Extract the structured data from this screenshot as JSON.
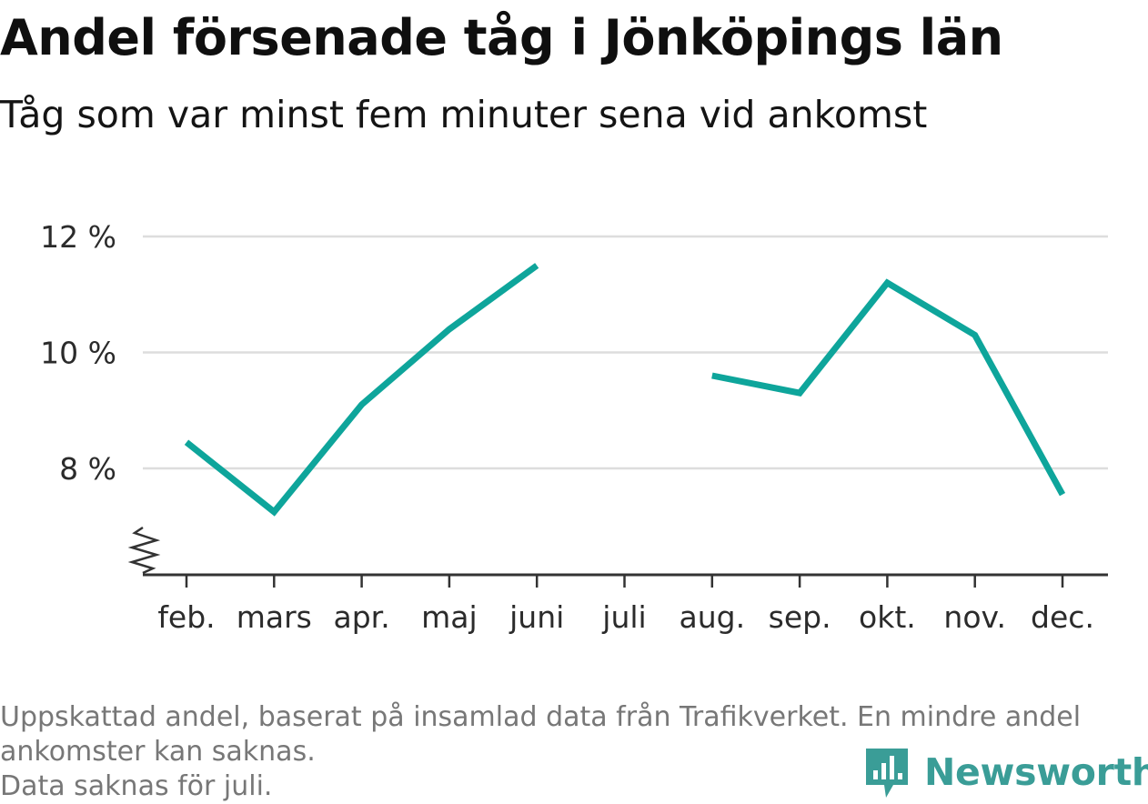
{
  "title": "Andel försenade tåg i Jönköpings län",
  "subtitle": "Tåg som var minst fem minuter sena vid ankomst",
  "notes": [
    "Uppskattad andel, baserat på insamlad data från Trafikverket. En mindre andel",
    "ankomster kan saknas.",
    "Data saknas för juli."
  ],
  "brand": {
    "name": "Newsworthy",
    "icon": "newsworthy-logo-icon",
    "color": "#3a9d97"
  },
  "colors": {
    "line": "#0ea59b",
    "grid": "#dddddd",
    "axis": "#333333"
  },
  "chart_data": {
    "type": "line",
    "title": "Andel försenade tåg i Jönköpings län",
    "subtitle": "Tåg som var minst fem minuter sena vid ankomst",
    "categories": [
      "feb.",
      "mars",
      "apr.",
      "maj",
      "juni",
      "juli",
      "aug.",
      "sep.",
      "okt.",
      "nov.",
      "dec."
    ],
    "series": [
      {
        "values": [
          8.45,
          7.25,
          9.1,
          10.4,
          11.5,
          null,
          9.6,
          9.3,
          11.2,
          10.3,
          7.55
        ]
      }
    ],
    "ylim": [
      6.2,
      12.8
    ],
    "yticks": [
      8,
      10,
      12
    ],
    "ytick_labels": [
      "8 %",
      "10 %",
      "12 %"
    ],
    "axis_break": true,
    "grid": true,
    "legend": "none"
  }
}
